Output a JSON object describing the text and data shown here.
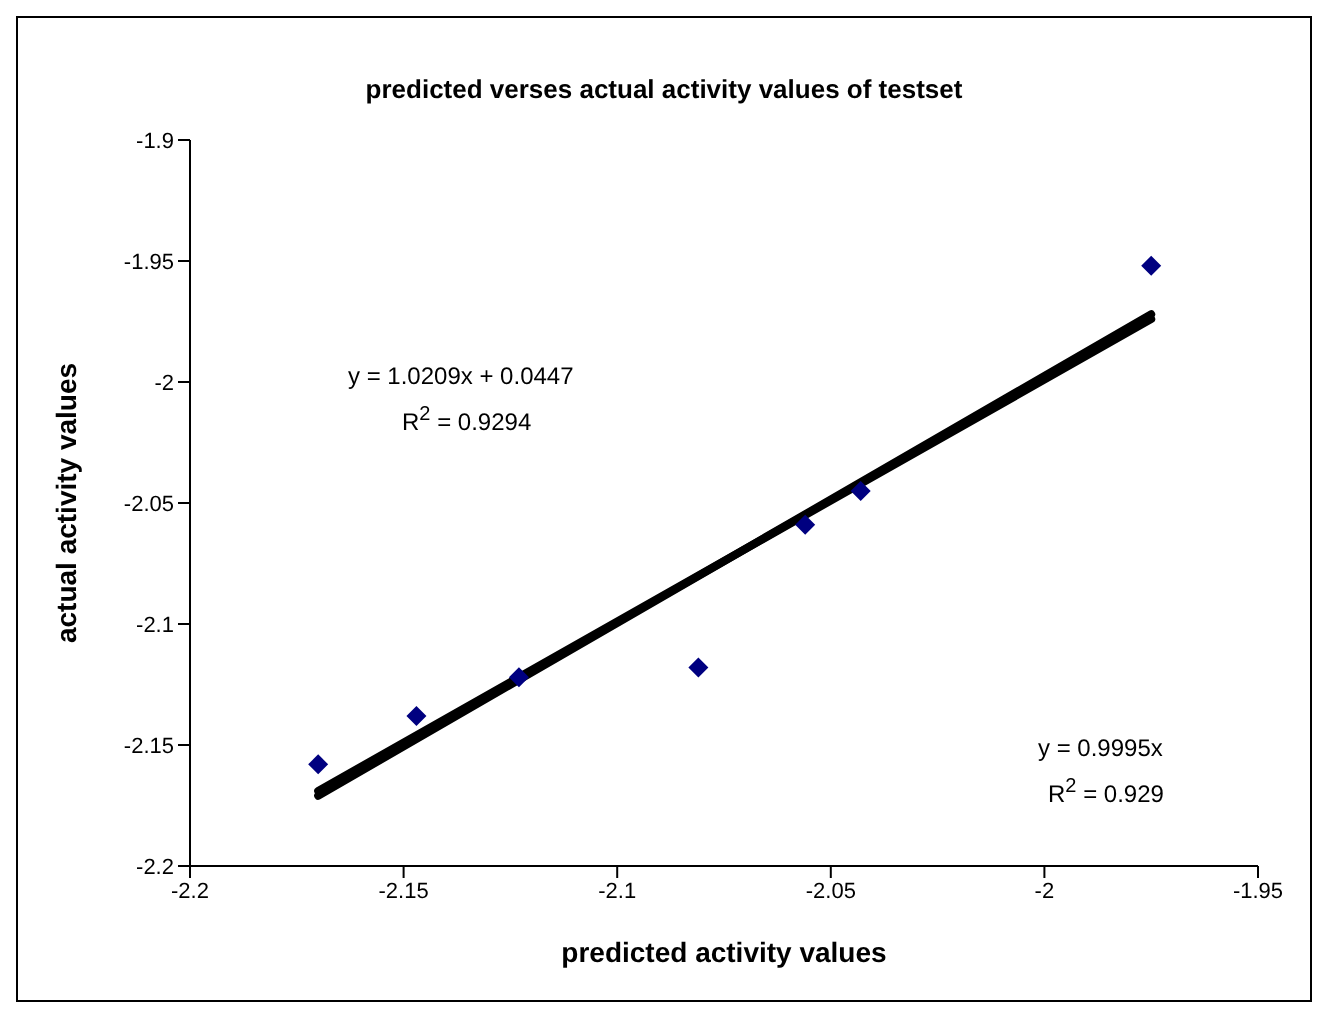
{
  "chart_data": {
    "type": "scatter",
    "title": "predicted verses actual activity values of testset",
    "xlabel": "predicted activity values",
    "ylabel": "actual activity values",
    "xlim": [
      -2.2,
      -1.95
    ],
    "xticks": [
      -2.2,
      -2.15,
      -2.1,
      -2.05,
      -2,
      -1.95
    ],
    "ylim": [
      -2.2,
      -1.9
    ],
    "yticks": [
      -2.2,
      -2.15,
      -2.1,
      -2.05,
      -2,
      -1.95,
      -1.9
    ],
    "grid": false,
    "legend": false,
    "annotations": [
      "y = 1.0209x + 0.0447",
      "R$^{2}$ = 0.9294",
      "y = 0.9995x",
      "R$^{2}$ = 0.929"
    ],
    "series": [
      {
        "color": "#000080",
        "marker": "diamond",
        "x": [
          -2.17,
          -2.147,
          -2.123,
          -2.081,
          -2.056,
          -2.043,
          -1.975
        ],
        "values": [
          -2.158,
          -2.138,
          -2.122,
          -2.118,
          -2.059,
          -2.045,
          -1.952
        ]
      },
      {
        "type": "line",
        "color": "#000000",
        "marker": "none",
        "x": [
          -2.17,
          -1.975
        ],
        "values": [
          -2.171,
          -1.972
        ]
      },
      {
        "type": "line",
        "color": "#000000",
        "marker": "none",
        "x": [
          -2.17,
          -1.975
        ],
        "values": [
          -2.169,
          -1.974
        ]
      }
    ]
  }
}
